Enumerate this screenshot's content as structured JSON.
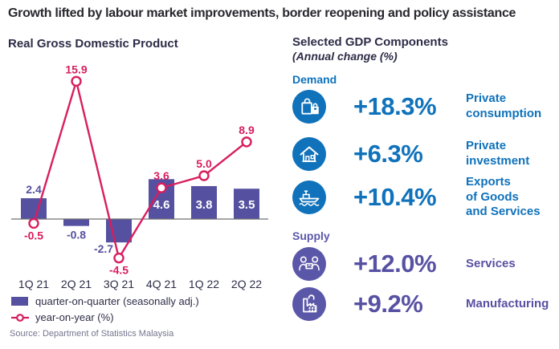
{
  "page": {
    "title": "Growth lifted by labour market improvements, border reopening and policy assistance"
  },
  "left": {
    "title": "Real Gross Domestic Product",
    "legend": [
      {
        "swatch": "bar-swatch",
        "label": "quarter-on-quarter (seasonally adj.)"
      },
      {
        "swatch": "line-marker",
        "label": "year-on-year (%)"
      }
    ],
    "source": "Source: Department of Statistics Malaysia"
  },
  "chart_data": {
    "type": "bar",
    "subtype": "bar + line combo",
    "categories": [
      "1Q 21",
      "2Q 21",
      "3Q 21",
      "4Q 21",
      "1Q 22",
      "2Q 22"
    ],
    "series": [
      {
        "name": "quarter-on-quarter (seasonally adj.)",
        "type": "bar",
        "values": [
          2.4,
          -0.8,
          -2.7,
          4.6,
          3.8,
          3.5
        ],
        "label_positions": [
          "above",
          "below",
          "below-left",
          "inside",
          "inside",
          "inside"
        ]
      },
      {
        "name": "year-on-year (%)",
        "type": "line",
        "values": [
          -0.5,
          15.9,
          -4.5,
          3.6,
          5.0,
          8.9
        ],
        "label_positions": [
          "below",
          "above",
          "below",
          "above",
          "above",
          "above"
        ]
      }
    ],
    "title": "Real Gross Domestic Product",
    "xlabel": "",
    "ylabel": "",
    "ylim": [
      -6,
      17
    ],
    "grid": false,
    "legend_position": "bottom-left",
    "colors": {
      "bar": "#5551A0",
      "line": "#D81E5F",
      "inside_label": "#FFFFFF",
      "axis": "#707070",
      "tick_label": "#2D2C47"
    }
  },
  "right": {
    "title": "Selected GDP Components",
    "subtitle": "(Annual change (%)",
    "groups": [
      {
        "name": "Demand",
        "color": "#0F72BB",
        "items": [
          {
            "icon": "shopping-bags-icon",
            "value": "+18.3%",
            "label": "Private\nconsumption"
          },
          {
            "icon": "house-icon",
            "value": "+6.3%",
            "label": "Private\ninvestment"
          },
          {
            "icon": "cargo-ship-icon",
            "value": "+10.4%",
            "label": "Exports\nof Goods\nand Services"
          }
        ]
      },
      {
        "name": "Supply",
        "color": "#5B57A8",
        "items": [
          {
            "icon": "people-box-icon",
            "value": "+12.0%",
            "label": "Services"
          },
          {
            "icon": "factory-icon",
            "value": "+9.2%",
            "label": "Manufacturing"
          }
        ]
      }
    ]
  }
}
